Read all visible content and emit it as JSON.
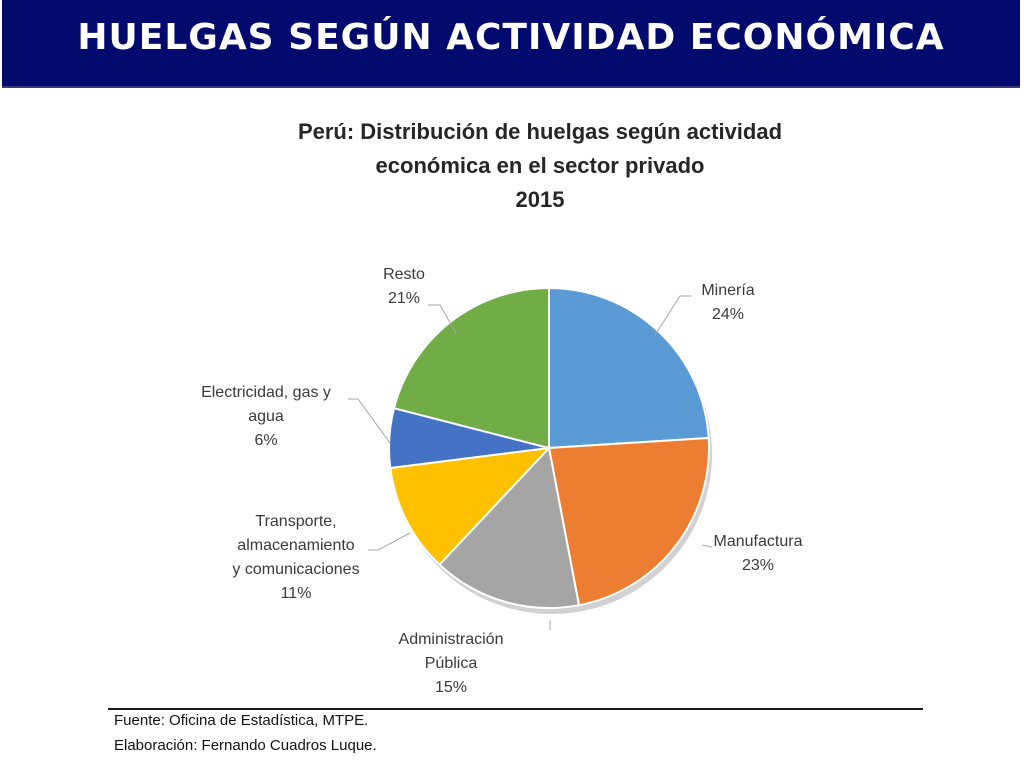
{
  "header": {
    "title": "HUELGAS SEGÚN ACTIVIDAD ECONÓMICA"
  },
  "chart_data": {
    "type": "pie",
    "title": [
      "Perú: Distribución de huelgas según actividad",
      "económica en el sector privado",
      "2015"
    ],
    "slices": [
      {
        "label": [
          "Minería"
        ],
        "value": 24,
        "value_label": "24%",
        "color": "#5b9bd5"
      },
      {
        "label": [
          "Manufactura"
        ],
        "value": 23,
        "value_label": "23%",
        "color": "#ed7d31"
      },
      {
        "label": [
          "Administración",
          "Pública"
        ],
        "value": 15,
        "value_label": "15%",
        "color": "#a5a5a5"
      },
      {
        "label": [
          "Transporte,",
          "almacenamiento",
          "y comunicaciones"
        ],
        "value": 11,
        "value_label": "11%",
        "color": "#ffc000"
      },
      {
        "label": [
          "Electricidad, gas y",
          "agua"
        ],
        "value": 6,
        "value_label": "6%",
        "color": "#4472c4"
      },
      {
        "label": [
          "Resto"
        ],
        "value": 21,
        "value_label": "21%",
        "color": "#70ad47"
      }
    ]
  },
  "footer": {
    "source": "Fuente: Oficina de Estadística, MTPE.",
    "author": "Elaboración: Fernando Cuadros Luque."
  }
}
